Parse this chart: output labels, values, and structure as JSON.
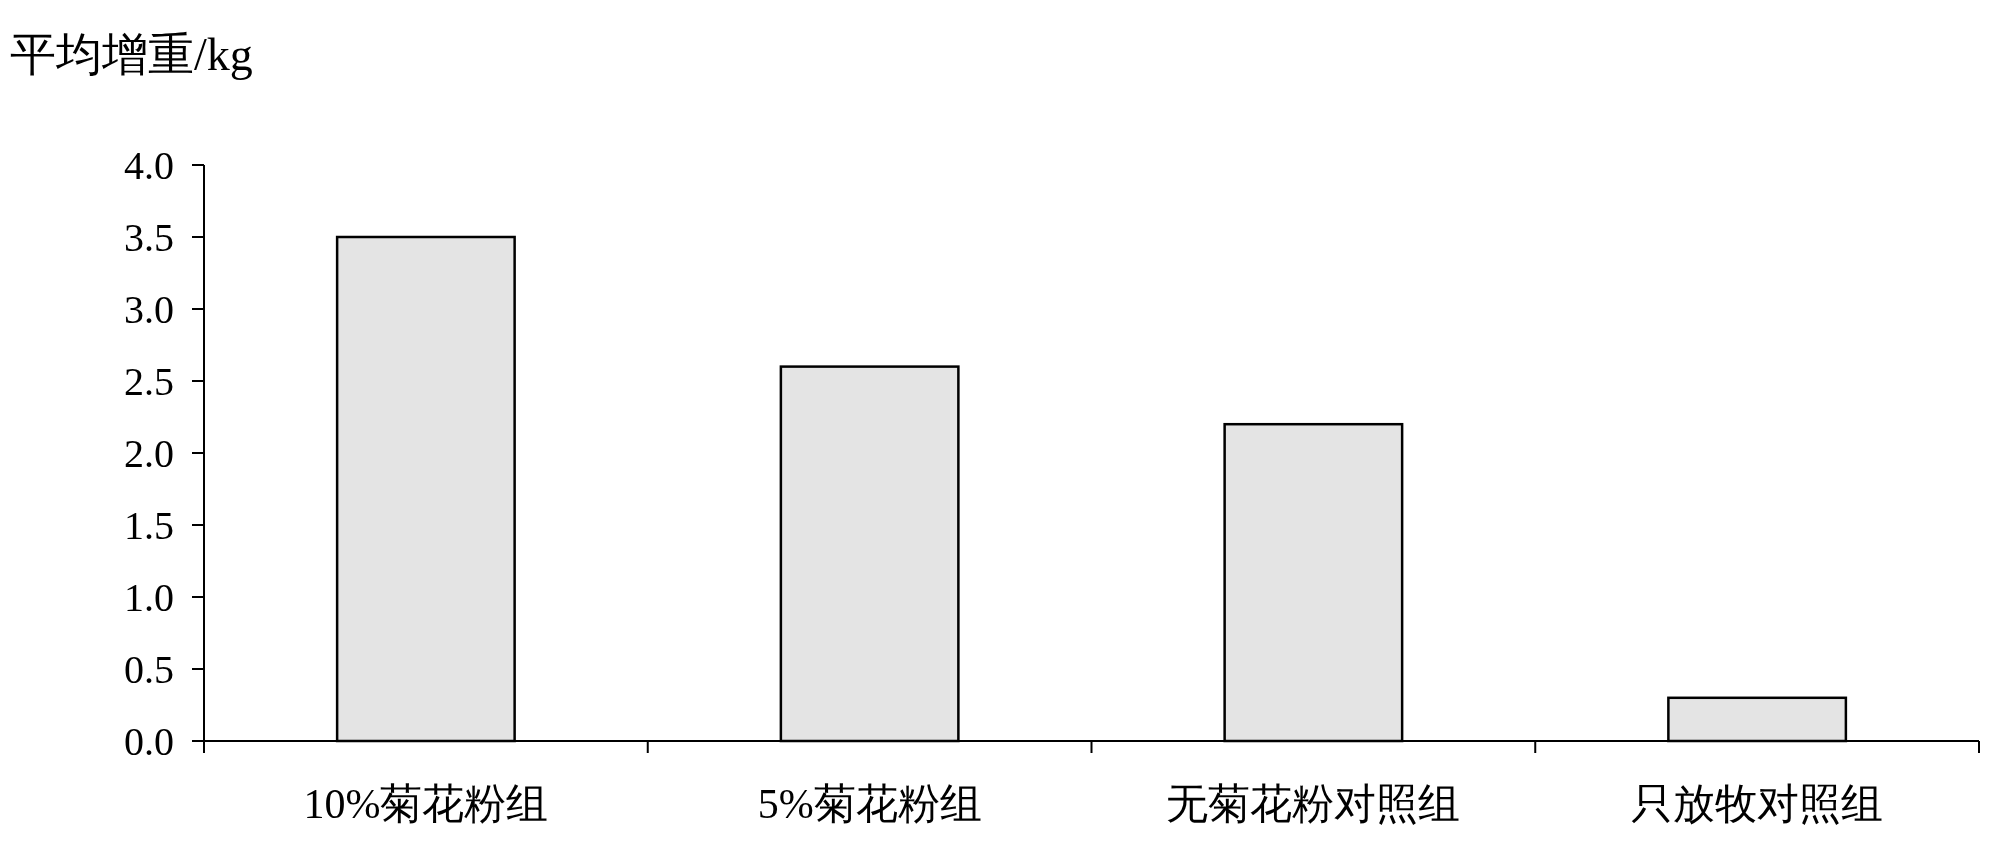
{
  "chart_data": {
    "type": "bar",
    "ylabel": "平均增重/kg",
    "categories": [
      "10%菊花粉组",
      "5%菊花粉组",
      "无菊花粉对照组",
      "只放牧对照组"
    ],
    "values": [
      3.5,
      2.6,
      2.2,
      0.3
    ],
    "color": "#e4e4e4",
    "ylim": [
      0,
      4
    ],
    "yticks": [
      {
        "value": 0,
        "label": "0.0"
      },
      {
        "value": 0.5,
        "label": "0.5"
      },
      {
        "value": 1,
        "label": "1.0"
      },
      {
        "value": 1.5,
        "label": "1.5"
      },
      {
        "value": 2,
        "label": "2.0"
      },
      {
        "value": 2.5,
        "label": "2.5"
      },
      {
        "value": 3,
        "label": "3.0"
      },
      {
        "value": 3.5,
        "label": "3.5"
      },
      {
        "value": 4,
        "label": "4.0"
      }
    ]
  }
}
